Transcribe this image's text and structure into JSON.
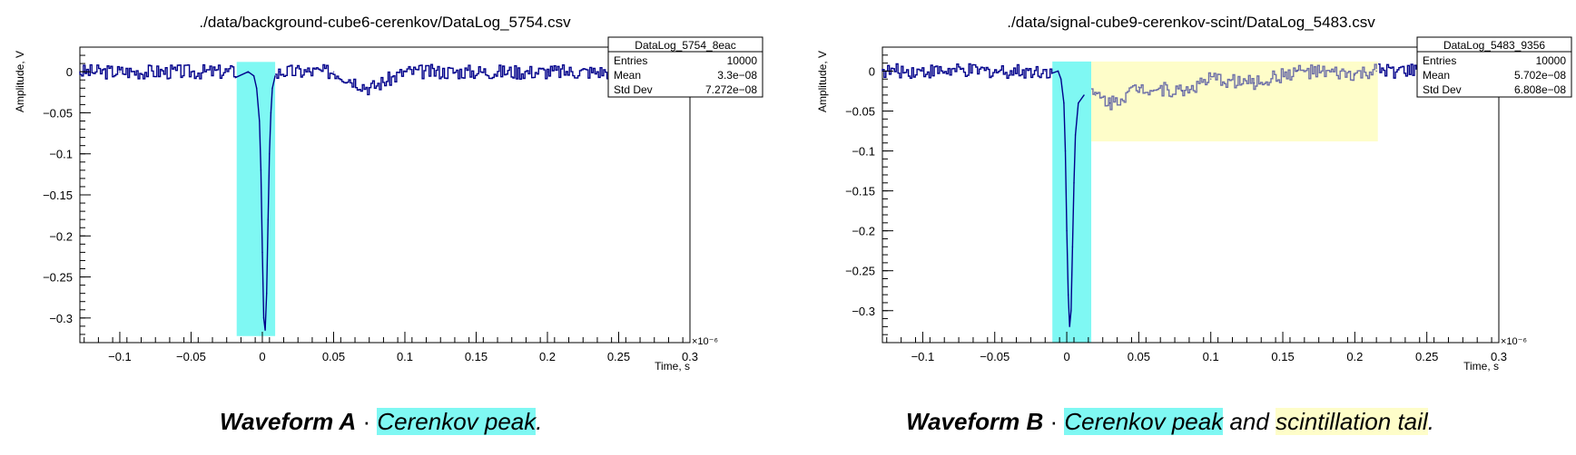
{
  "panels": [
    {
      "title": "./data/background-cube6-cerenkov/DataLog_5754.csv",
      "stats": {
        "name": "DataLog_5754_8eac",
        "rows": [
          [
            "Entries",
            "10000"
          ],
          [
            "Mean",
            "3.3e−08"
          ],
          [
            "Std Dev",
            "7.272e−08"
          ]
        ]
      },
      "ylabel": "Amplitude, V",
      "xlabel": "Time, s",
      "exponent": "×10⁻⁶",
      "xticks": [
        [
          "−0.1",
          -0.1
        ],
        [
          "−0.05",
          -0.05
        ],
        [
          "0",
          0
        ],
        [
          "0.05",
          0.05
        ],
        [
          "0.1",
          0.1
        ],
        [
          "0.15",
          0.15
        ],
        [
          "0.2",
          0.2
        ],
        [
          "0.25",
          0.25
        ],
        [
          "0.3",
          0.3
        ]
      ],
      "yticks": [
        [
          "0",
          0
        ],
        [
          "−0.05",
          -0.05
        ],
        [
          "−0.1",
          -0.1
        ],
        [
          "−0.15",
          -0.15
        ],
        [
          "−0.2",
          -0.2
        ],
        [
          "−0.25",
          -0.25
        ],
        [
          "−0.3",
          -0.3
        ]
      ]
    },
    {
      "title": "./data/signal-cube9-cerenkov-scint/DataLog_5483.csv",
      "stats": {
        "name": "DataLog_5483_9356",
        "rows": [
          [
            "Entries",
            "10000"
          ],
          [
            "Mean",
            "5.702e−08"
          ],
          [
            "Std Dev",
            "6.808e−08"
          ]
        ]
      },
      "ylabel": "Amplitude, V",
      "xlabel": "Time, s",
      "exponent": "×10⁻⁶",
      "xticks": [
        [
          "−0.1",
          -0.1
        ],
        [
          "−0.05",
          -0.05
        ],
        [
          "0",
          0
        ],
        [
          "0.05",
          0.05
        ],
        [
          "0.1",
          0.1
        ],
        [
          "0.15",
          0.15
        ],
        [
          "0.2",
          0.2
        ],
        [
          "0.25",
          0.25
        ],
        [
          "0.3",
          0.3
        ]
      ],
      "yticks": [
        [
          "0",
          0
        ],
        [
          "−0.05",
          -0.05
        ],
        [
          "−0.1",
          -0.1
        ],
        [
          "−0.15",
          -0.15
        ],
        [
          "−0.2",
          -0.2
        ],
        [
          "−0.25",
          -0.25
        ],
        [
          "−0.3",
          -0.3
        ]
      ]
    }
  ],
  "captions": [
    {
      "lead": "Waveform A",
      "sep": " · ",
      "hl1": "Cerenkov peak",
      "mid": "",
      "hl2": "",
      "end": "."
    },
    {
      "lead": "Waveform B",
      "sep": " · ",
      "hl1": "Cerenkov peak",
      "mid": " and ",
      "hl2": "scintillation tail",
      "end": "."
    }
  ],
  "colors": {
    "trace": "#00008b",
    "trace_tail": "#6d6fa8",
    "cerenkov_band": "#7ff8f3",
    "scint_band": "#fefdc9",
    "axis": "#000000"
  },
  "chart_data": [
    {
      "type": "line",
      "title": "./data/background-cube6-cerenkov/DataLog_5754.csv",
      "xlabel": "Time, s",
      "ylabel": "Amplitude, V",
      "x_scale_note": "×10⁻⁶",
      "xlim": [
        -0.128,
        0.3
      ],
      "ylim": [
        -0.33,
        0.03
      ],
      "grid": false,
      "stats_box": {
        "position": "top-right",
        "name": "DataLog_5754_8eac",
        "entries": 10000,
        "mean": 3.3e-08,
        "std_dev": 7.272e-08
      },
      "series": [
        {
          "values_xy": [
            [
              -0.128,
              0.0
            ],
            [
              -0.1,
              0.0
            ],
            [
              -0.05,
              0.0
            ],
            [
              -0.02,
              0.0
            ],
            [
              -0.01,
              0.0
            ],
            [
              -0.006,
              -0.005
            ],
            [
              -0.004,
              -0.02
            ],
            [
              -0.002,
              -0.06
            ],
            [
              -0.001,
              -0.12
            ],
            [
              0.0,
              -0.22
            ],
            [
              0.001,
              -0.3
            ],
            [
              0.002,
              -0.315
            ],
            [
              0.003,
              -0.27
            ],
            [
              0.004,
              -0.18
            ],
            [
              0.005,
              -0.1
            ],
            [
              0.006,
              -0.05
            ],
            [
              0.007,
              -0.02
            ],
            [
              0.009,
              -0.005
            ],
            [
              0.012,
              0.0
            ],
            [
              0.05,
              0.0
            ],
            [
              0.075,
              -0.02
            ],
            [
              0.1,
              0.0
            ],
            [
              0.2,
              0.0
            ],
            [
              0.3,
              0.0
            ]
          ]
        }
      ],
      "highlights": [
        {
          "label": "Cerenkov peak",
          "x": [
            -0.018,
            0.009
          ],
          "y": [
            -0.322,
            0.012
          ]
        }
      ]
    },
    {
      "type": "line",
      "title": "./data/signal-cube9-cerenkov-scint/DataLog_5483.csv",
      "xlabel": "Time, s",
      "ylabel": "Amplitude, V",
      "x_scale_note": "×10⁻⁶",
      "xlim": [
        -0.128,
        0.3
      ],
      "ylim": [
        -0.34,
        0.03
      ],
      "grid": false,
      "stats_box": {
        "position": "top-right",
        "name": "DataLog_5483_9356",
        "entries": 10000,
        "mean": 5.702e-08,
        "std_dev": 6.808e-08
      },
      "series": [
        {
          "values_xy": [
            [
              -0.128,
              0.0
            ],
            [
              -0.1,
              0.0
            ],
            [
              -0.05,
              0.0
            ],
            [
              -0.015,
              0.0
            ],
            [
              -0.006,
              0.0
            ],
            [
              -0.004,
              -0.01
            ],
            [
              -0.002,
              -0.04
            ],
            [
              -0.001,
              -0.1
            ],
            [
              0.0,
              -0.2
            ],
            [
              0.001,
              -0.28
            ],
            [
              0.002,
              -0.32
            ],
            [
              0.003,
              -0.3
            ],
            [
              0.004,
              -0.22
            ],
            [
              0.005,
              -0.14
            ],
            [
              0.006,
              -0.08
            ],
            [
              0.008,
              -0.04
            ],
            [
              0.012,
              -0.03
            ],
            [
              0.02,
              -0.03
            ],
            [
              0.03,
              -0.04
            ],
            [
              0.05,
              -0.02
            ],
            [
              0.08,
              -0.025
            ],
            [
              0.1,
              -0.01
            ],
            [
              0.13,
              -0.015
            ],
            [
              0.16,
              0.0
            ],
            [
              0.2,
              -0.005
            ],
            [
              0.215,
              0.0
            ],
            [
              0.3,
              0.0
            ]
          ]
        }
      ],
      "highlights": [
        {
          "label": "Cerenkov peak",
          "x": [
            -0.01,
            0.017
          ],
          "y": [
            -0.34,
            0.012
          ]
        },
        {
          "label": "scintillation tail",
          "x": [
            0.017,
            0.216
          ],
          "y": [
            -0.088,
            0.012
          ]
        }
      ]
    }
  ]
}
